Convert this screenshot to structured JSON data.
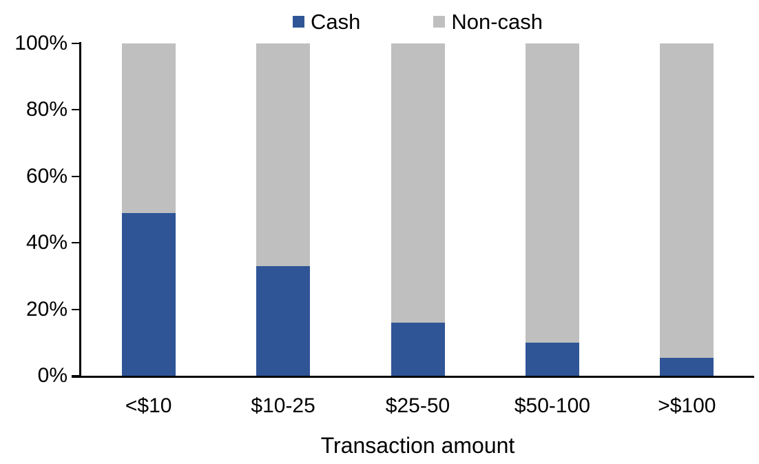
{
  "chart_data": {
    "type": "bar",
    "stacked": true,
    "title": "",
    "xlabel": "Transaction amount",
    "ylabel": "",
    "categories": [
      "<$10",
      "$10-25",
      "$25-50",
      "$50-100",
      ">$100"
    ],
    "series": [
      {
        "name": "Cash",
        "color": "#2F5597",
        "values": [
          49,
          33,
          16,
          10,
          5.5
        ]
      },
      {
        "name": "Non-cash",
        "color": "#BFBFBF",
        "values": [
          51,
          67,
          84,
          90,
          94.5
        ]
      }
    ],
    "y_axis": {
      "min": 0,
      "max": 100,
      "tick_step": 20,
      "tick_labels": [
        "0%",
        "20%",
        "40%",
        "60%",
        "80%",
        "100%"
      ]
    },
    "legend_position": "top",
    "grid": false,
    "axis_color": "#000000",
    "background_color": "#FFFFFF"
  }
}
